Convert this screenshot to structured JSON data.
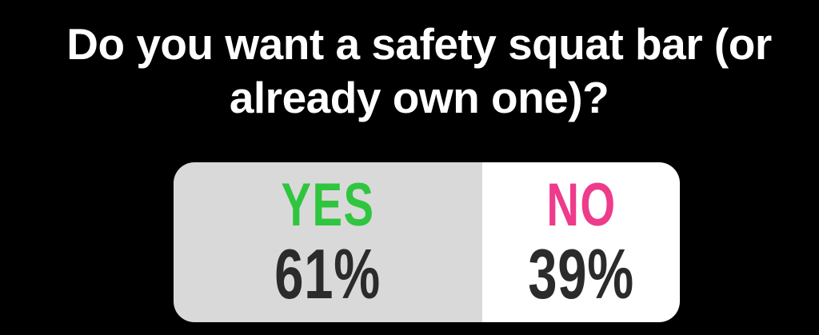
{
  "page": {
    "background": "#000000",
    "question_color": "#ffffff"
  },
  "poll": {
    "question": "Do you want a safety squat bar (or already own one)?",
    "question_lines": [
      "Do you want a safety squat bar (or",
      "already own one)?"
    ],
    "percent_text_color": "#2b2b2b",
    "options": [
      {
        "label": "YES",
        "percent": 61,
        "percent_label": "61%",
        "label_color": "#30c53e",
        "segment_bg": "#d9d9d9"
      },
      {
        "label": "NO",
        "percent": 39,
        "percent_label": "39%",
        "label_color": "#ee3b8b",
        "segment_bg": "#ffffff"
      }
    ]
  }
}
